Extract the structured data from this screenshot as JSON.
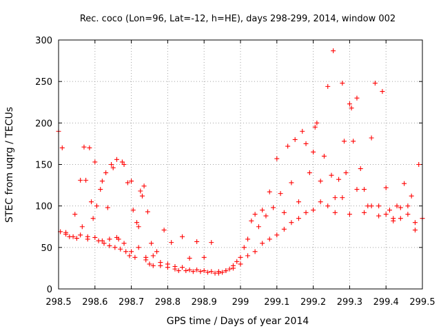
{
  "chart_data": {
    "type": "scatter",
    "title": "Rec. coco (Lon=96, Lat=-12, h=HE), days 298-299, 2014, window 002",
    "xlabel": "GPS time / Days of year 2014",
    "ylabel": "STEC from uqrg / TECUs",
    "xlim": [
      298.5,
      299.5
    ],
    "ylim": [
      0,
      300
    ],
    "xticks": [
      298.5,
      298.6,
      298.7,
      298.8,
      298.9,
      299.0,
      299.1,
      299.2,
      299.3,
      299.4,
      299.5
    ],
    "xtick_labels": [
      "298.5",
      "298.6",
      "298.7",
      "298.8",
      "298.9",
      "299",
      "299.1",
      "299.2",
      "299.3",
      "299.4",
      "299.5"
    ],
    "yticks": [
      0,
      50,
      100,
      150,
      200,
      250,
      300
    ],
    "ytick_labels": [
      "0",
      "50",
      "100",
      "150",
      "200",
      "250",
      "300"
    ],
    "grid": true,
    "marker": "+",
    "color": "#ff0000",
    "series": [
      {
        "name": "STEC",
        "points": [
          [
            298.5,
            190
          ],
          [
            298.505,
            69
          ],
          [
            298.51,
            170
          ],
          [
            298.52,
            66
          ],
          [
            298.53,
            63
          ],
          [
            298.54,
            63
          ],
          [
            298.545,
            90
          ],
          [
            298.55,
            61
          ],
          [
            298.56,
            131
          ],
          [
            298.565,
            75
          ],
          [
            298.57,
            171
          ],
          [
            298.575,
            131
          ],
          [
            298.58,
            63
          ],
          [
            298.585,
            170
          ],
          [
            298.59,
            105
          ],
          [
            298.595,
            85
          ],
          [
            298.6,
            153
          ],
          [
            298.605,
            100
          ],
          [
            298.61,
            58
          ],
          [
            298.615,
            120
          ],
          [
            298.62,
            130
          ],
          [
            298.625,
            55
          ],
          [
            298.63,
            140
          ],
          [
            298.635,
            98
          ],
          [
            298.64,
            52
          ],
          [
            298.645,
            150
          ],
          [
            298.65,
            146
          ],
          [
            298.655,
            50
          ],
          [
            298.66,
            156
          ],
          [
            298.665,
            60
          ],
          [
            298.67,
            48
          ],
          [
            298.675,
            153
          ],
          [
            298.68,
            150
          ],
          [
            298.685,
            45
          ],
          [
            298.69,
            128
          ],
          [
            298.695,
            40
          ],
          [
            298.7,
            130
          ],
          [
            298.705,
            95
          ],
          [
            298.71,
            38
          ],
          [
            298.715,
            80
          ],
          [
            298.72,
            75
          ],
          [
            298.725,
            118
          ],
          [
            298.73,
            112
          ],
          [
            298.735,
            124
          ],
          [
            298.74,
            35
          ],
          [
            298.745,
            93
          ],
          [
            298.75,
            30
          ],
          [
            298.755,
            55
          ],
          [
            298.76,
            28
          ],
          [
            298.77,
            45
          ],
          [
            298.78,
            28
          ],
          [
            298.79,
            71
          ],
          [
            298.8,
            26
          ],
          [
            298.81,
            56
          ],
          [
            298.82,
            24
          ],
          [
            298.83,
            22
          ],
          [
            298.84,
            63
          ],
          [
            298.85,
            22
          ],
          [
            298.86,
            37
          ],
          [
            298.87,
            21
          ],
          [
            298.88,
            57
          ],
          [
            298.89,
            21
          ],
          [
            298.9,
            38
          ],
          [
            298.91,
            20
          ],
          [
            298.92,
            56
          ],
          [
            298.93,
            19
          ],
          [
            298.94,
            19
          ],
          [
            298.95,
            20
          ],
          [
            298.96,
            22
          ],
          [
            298.97,
            24
          ],
          [
            298.98,
            28
          ],
          [
            298.99,
            33
          ],
          [
            299.0,
            38
          ],
          [
            299.01,
            50
          ],
          [
            299.02,
            60
          ],
          [
            299.03,
            82
          ],
          [
            299.04,
            90
          ],
          [
            299.05,
            75
          ],
          [
            299.06,
            95
          ],
          [
            299.07,
            88
          ],
          [
            299.08,
            117
          ],
          [
            299.09,
            98
          ],
          [
            299.1,
            157
          ],
          [
            299.11,
            115
          ],
          [
            299.12,
            92
          ],
          [
            299.13,
            172
          ],
          [
            299.14,
            128
          ],
          [
            299.15,
            180
          ],
          [
            299.16,
            105
          ],
          [
            299.17,
            190
          ],
          [
            299.18,
            175
          ],
          [
            299.19,
            140
          ],
          [
            299.2,
            165
          ],
          [
            299.205,
            195
          ],
          [
            299.21,
            200
          ],
          [
            299.22,
            130
          ],
          [
            299.23,
            160
          ],
          [
            299.24,
            244
          ],
          [
            299.25,
            137
          ],
          [
            299.255,
            287
          ],
          [
            299.26,
            110
          ],
          [
            299.27,
            132
          ],
          [
            299.28,
            248
          ],
          [
            299.285,
            178
          ],
          [
            299.29,
            140
          ],
          [
            299.3,
            223
          ],
          [
            299.305,
            218
          ],
          [
            299.31,
            178
          ],
          [
            299.32,
            230
          ],
          [
            299.33,
            145
          ],
          [
            299.34,
            120
          ],
          [
            299.35,
            100
          ],
          [
            299.36,
            182
          ],
          [
            299.37,
            248
          ],
          [
            299.38,
            100
          ],
          [
            299.39,
            238
          ],
          [
            299.4,
            122
          ],
          [
            299.41,
            95
          ],
          [
            299.42,
            85
          ],
          [
            299.43,
            100
          ],
          [
            299.44,
            98
          ],
          [
            299.45,
            127
          ],
          [
            299.46,
            90
          ],
          [
            299.47,
            112
          ],
          [
            299.48,
            71
          ],
          [
            299.49,
            150
          ],
          [
            298.52,
            68
          ],
          [
            298.56,
            65
          ],
          [
            298.6,
            62
          ],
          [
            298.64,
            60
          ],
          [
            298.68,
            55
          ],
          [
            298.72,
            50
          ],
          [
            298.76,
            40
          ],
          [
            298.8,
            30
          ],
          [
            298.84,
            26
          ],
          [
            298.88,
            23
          ],
          [
            298.92,
            21
          ],
          [
            298.96,
            22
          ],
          [
            299.0,
            30
          ],
          [
            299.04,
            45
          ],
          [
            299.08,
            60
          ],
          [
            299.12,
            72
          ],
          [
            299.16,
            85
          ],
          [
            299.2,
            95
          ],
          [
            299.24,
            100
          ],
          [
            299.28,
            110
          ],
          [
            299.32,
            120
          ],
          [
            299.36,
            100
          ],
          [
            299.4,
            90
          ],
          [
            299.44,
            85
          ],
          [
            299.48,
            80
          ],
          [
            298.58,
            60
          ],
          [
            298.62,
            58
          ],
          [
            298.66,
            62
          ],
          [
            298.7,
            45
          ],
          [
            298.74,
            38
          ],
          [
            298.78,
            32
          ],
          [
            298.82,
            27
          ],
          [
            298.86,
            23
          ],
          [
            298.9,
            22
          ],
          [
            298.94,
            21
          ],
          [
            298.98,
            25
          ],
          [
            299.02,
            40
          ],
          [
            299.06,
            55
          ],
          [
            299.1,
            65
          ],
          [
            299.14,
            80
          ],
          [
            299.18,
            92
          ],
          [
            299.22,
            105
          ],
          [
            299.26,
            92
          ],
          [
            299.3,
            90
          ],
          [
            299.34,
            92
          ],
          [
            299.38,
            88
          ],
          [
            299.42,
            82
          ],
          [
            299.46,
            100
          ],
          [
            299.5,
            85
          ]
        ]
      }
    ]
  }
}
